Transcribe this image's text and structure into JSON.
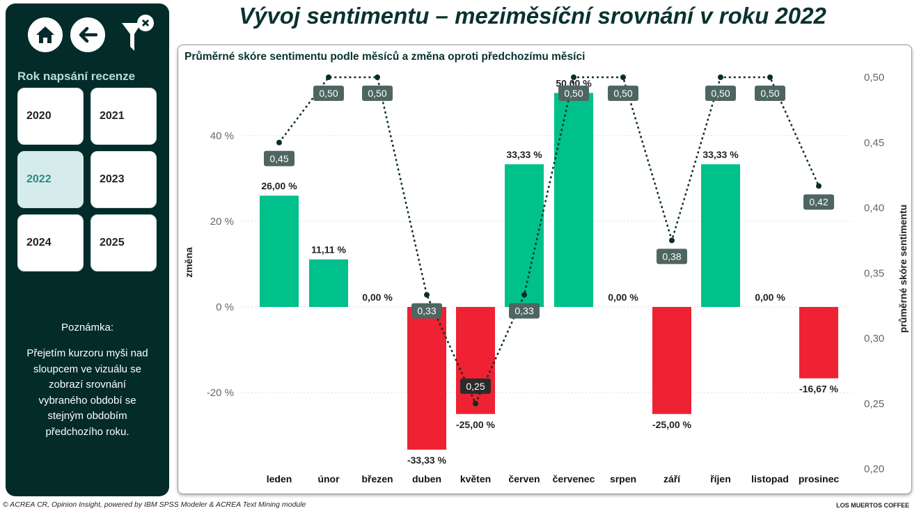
{
  "page_title": "Vývoj sentimentu – meziměsíční srovnání v roku 2022",
  "sidebar": {
    "icons": [
      "home-icon",
      "back-arrow-icon",
      "clear-filter-icon"
    ],
    "year_filter_title": "Rok napsání recenze",
    "years": [
      {
        "label": "2020",
        "selected": false
      },
      {
        "label": "2021",
        "selected": false
      },
      {
        "label": "2022",
        "selected": true
      },
      {
        "label": "2023",
        "selected": false
      },
      {
        "label": "2024",
        "selected": false
      },
      {
        "label": "2025",
        "selected": false
      }
    ],
    "note_title": "Poznámka:",
    "note_text": "Přejetím kurzoru myši nad sloupcem ve vizuálu se zobrazí srovnání vybraného období se stejným obdobím předchozího roku."
  },
  "footer": {
    "left": "© ACREA CR, Opinion Insight, powered by IBM SPSS Modeler & ACREA Text Mining module",
    "right": "LOS MUERTOS  COFFEE"
  },
  "colors": {
    "positive": "#00c08b",
    "negative": "#ee2233",
    "line": "#0a2e28",
    "label_bg": "#4e6661"
  },
  "chart_data": {
    "type": "bar+line",
    "title": "Průměrné skóre sentimentu podle měsíců a změna oproti předchozímu měsíci",
    "categories": [
      "leden",
      "únor",
      "březen",
      "duben",
      "květen",
      "červen",
      "červenec",
      "srpen",
      "září",
      "říjen",
      "listopad",
      "prosinec"
    ],
    "bar_series": {
      "name": "změna",
      "values": [
        26.0,
        11.11,
        0.0,
        -33.33,
        -25.0,
        33.33,
        50.0,
        0.0,
        -25.0,
        33.33,
        0.0,
        -16.67
      ],
      "labels": [
        "26,00 %",
        "11,11 %",
        "0,00 %",
        "-33,33 %",
        "-25,00 %",
        "33,33 %",
        "50,00 %",
        "0,00 %",
        "-25,00 %",
        "33,33 %",
        "0,00 %",
        "-16,67 %"
      ]
    },
    "line_series": {
      "name": "průměrné skóre sentimentu",
      "values": [
        0.45,
        0.5,
        0.5,
        0.3333,
        0.25,
        0.3333,
        0.5,
        0.5,
        0.375,
        0.5,
        0.5,
        0.4167
      ],
      "labels": [
        "0,45",
        "0,50",
        "0,50",
        "0,33",
        "0,25",
        "0,33",
        "0,50",
        "0,50",
        "0,38",
        "0,50",
        "0,50",
        "0,42"
      ]
    },
    "ylabel_left": "změna",
    "ylabel_right": "průměrné skóre sentimentu",
    "ylim_left": [
      -32.4,
      53.2
    ],
    "yticks_left": [
      {
        "v": 40,
        "t": "40 %"
      },
      {
        "v": 20,
        "t": "20 %"
      },
      {
        "v": 0,
        "t": "0 %"
      },
      {
        "v": -20,
        "t": "-20 %"
      }
    ],
    "ylim_right": [
      0.2,
      0.5
    ],
    "yticks_right": [
      {
        "v": 0.5,
        "t": "0,50"
      },
      {
        "v": 0.45,
        "t": "0,45"
      },
      {
        "v": 0.4,
        "t": "0,40"
      },
      {
        "v": 0.35,
        "t": "0,35"
      },
      {
        "v": 0.3,
        "t": "0,30"
      },
      {
        "v": 0.25,
        "t": "0,25"
      },
      {
        "v": 0.2,
        "t": "0,20"
      }
    ],
    "grid": true
  }
}
